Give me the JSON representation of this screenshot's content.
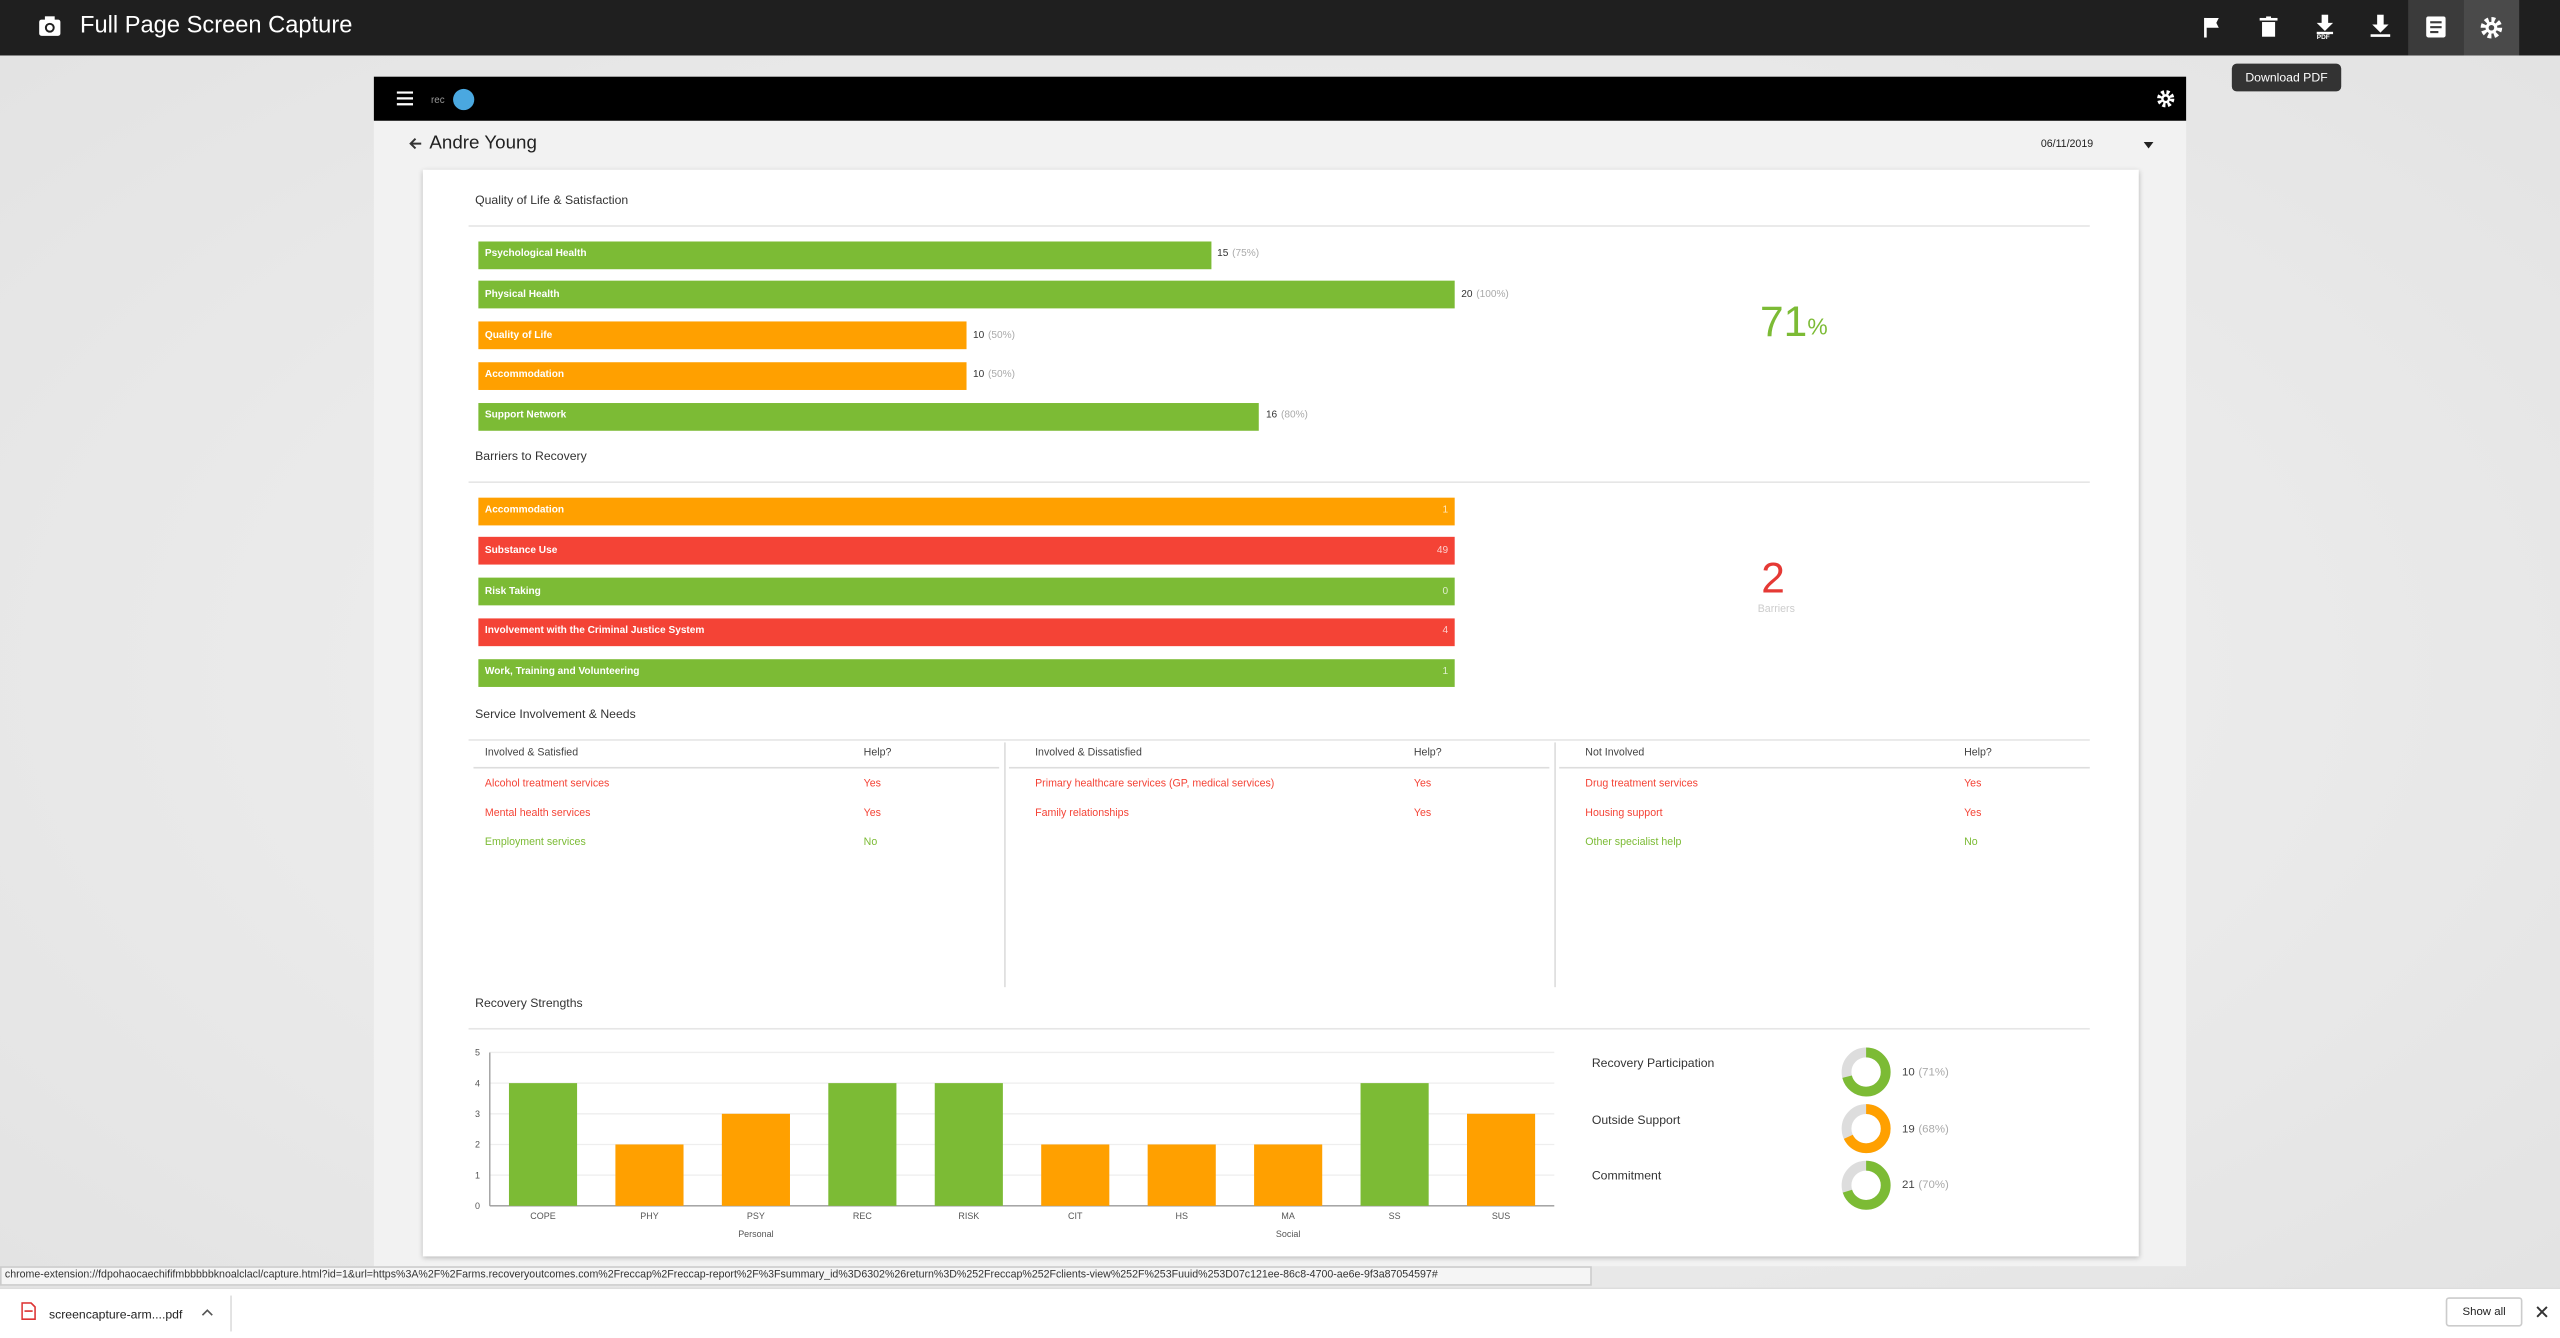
{
  "app_bar": {
    "title": "Full Page Screen Capture",
    "tooltip": "Download PDF",
    "pdf_icon_label": "PDF"
  },
  "client": {
    "name": "Andre Young",
    "date": "06/11/2019"
  },
  "quality_of_life": {
    "title": "Quality of Life & Satisfaction",
    "score": 71,
    "score_unit": "%",
    "items": [
      {
        "label": "Psychological Health",
        "value": 15,
        "percent": 75,
        "percent_label": "(75%)",
        "color": "#7cbb35"
      },
      {
        "label": "Physical Health",
        "value": 20,
        "percent": 100,
        "percent_label": "(100%)",
        "color": "#7cbb35"
      },
      {
        "label": "Quality of Life",
        "value": 10,
        "percent": 50,
        "percent_label": "(50%)",
        "color": "#ffa000"
      },
      {
        "label": "Accommodation",
        "value": 10,
        "percent": 50,
        "percent_label": "(50%)",
        "color": "#ffa000"
      },
      {
        "label": "Support Network",
        "value": 16,
        "percent": 80,
        "percent_label": "(80%)",
        "color": "#7cbb35"
      }
    ]
  },
  "barriers": {
    "title": "Barriers to Recovery",
    "count": 2,
    "count_label": "Barriers",
    "items": [
      {
        "label": "Accommodation",
        "value": 1,
        "color": "#ffa000"
      },
      {
        "label": "Substance Use",
        "value": 49,
        "color": "#f44336"
      },
      {
        "label": "Risk Taking",
        "value": 0,
        "color": "#7cbb35"
      },
      {
        "label": "Involvement with the Criminal Justice System",
        "value": 4,
        "color": "#f44336"
      },
      {
        "label": "Work, Training and Volunteering",
        "value": 1,
        "color": "#7cbb35"
      }
    ]
  },
  "services": {
    "title": "Service Involvement & Needs",
    "columns": [
      {
        "header": "Involved & Satisfied",
        "help_header": "Help?",
        "rows": [
          {
            "service": "Alcohol treatment services",
            "help": "Yes",
            "color": "#f44336"
          },
          {
            "service": "Mental health services",
            "help": "Yes",
            "color": "#f44336"
          },
          {
            "service": "Employment services",
            "help": "No",
            "color": "#7cbb35"
          }
        ]
      },
      {
        "header": "Involved & Dissatisfied",
        "help_header": "Help?",
        "rows": [
          {
            "service": "Primary healthcare services (GP, medical services)",
            "help": "Yes",
            "color": "#f44336"
          },
          {
            "service": "Family relationships",
            "help": "Yes",
            "color": "#f44336"
          }
        ]
      },
      {
        "header": "Not Involved",
        "help_header": "Help?",
        "rows": [
          {
            "service": "Drug treatment services",
            "help": "Yes",
            "color": "#f44336"
          },
          {
            "service": "Housing support",
            "help": "Yes",
            "color": "#f44336"
          },
          {
            "service": "Other specialist help",
            "help": "No",
            "color": "#7cbb35"
          }
        ]
      }
    ]
  },
  "chart_data": {
    "type": "bar",
    "title": "Recovery Strengths",
    "categories": [
      "COPE",
      "PHY",
      "PSY",
      "REC",
      "RISK",
      "CIT",
      "HS",
      "MA",
      "SS",
      "SUS"
    ],
    "values": [
      4,
      2,
      3,
      4,
      4,
      2,
      2,
      2,
      4,
      3
    ],
    "colors": [
      "#7cbb35",
      "#ffa000",
      "#ffa000",
      "#7cbb35",
      "#7cbb35",
      "#ffa000",
      "#ffa000",
      "#ffa000",
      "#7cbb35",
      "#ffa000"
    ],
    "ylim": [
      0,
      5
    ],
    "yticks": [
      0,
      1,
      2,
      3,
      4,
      5
    ],
    "grid": true,
    "groups": [
      {
        "label": "Personal",
        "categories": [
          "COPE",
          "PHY",
          "PSY",
          "REC",
          "RISK"
        ]
      },
      {
        "label": "Social",
        "categories": [
          "CIT",
          "HS",
          "MA",
          "SS",
          "SUS"
        ]
      }
    ]
  },
  "strengths_summary": [
    {
      "label": "Recovery Participation",
      "value": 10,
      "percent": 71,
      "percent_label": "(71%)",
      "color": "#7cbb35"
    },
    {
      "label": "Outside Support",
      "value": 19,
      "percent": 68,
      "percent_label": "(68%)",
      "color": "#ffa000"
    },
    {
      "label": "Commitment",
      "value": 21,
      "percent": 70,
      "percent_label": "(70%)",
      "color": "#7cbb35"
    }
  ],
  "status_url": "chrome-extension://fdpohaocaechififmbbbbbknoalclacl/capture.html?id=1&url=https%3A%2F%2Farms.recoveryoutcomes.com%2Freccap%2Freccap-report%2F%3Fsummary_id%3D6302%26return%3D%252Freccap%252Fclients-view%252F%253Fuuid%253D07c121ee-86c8-4700-ae6e-9f3a87054597#",
  "downloads": {
    "file": "screencapture-arm....pdf",
    "show_all": "Show all"
  }
}
